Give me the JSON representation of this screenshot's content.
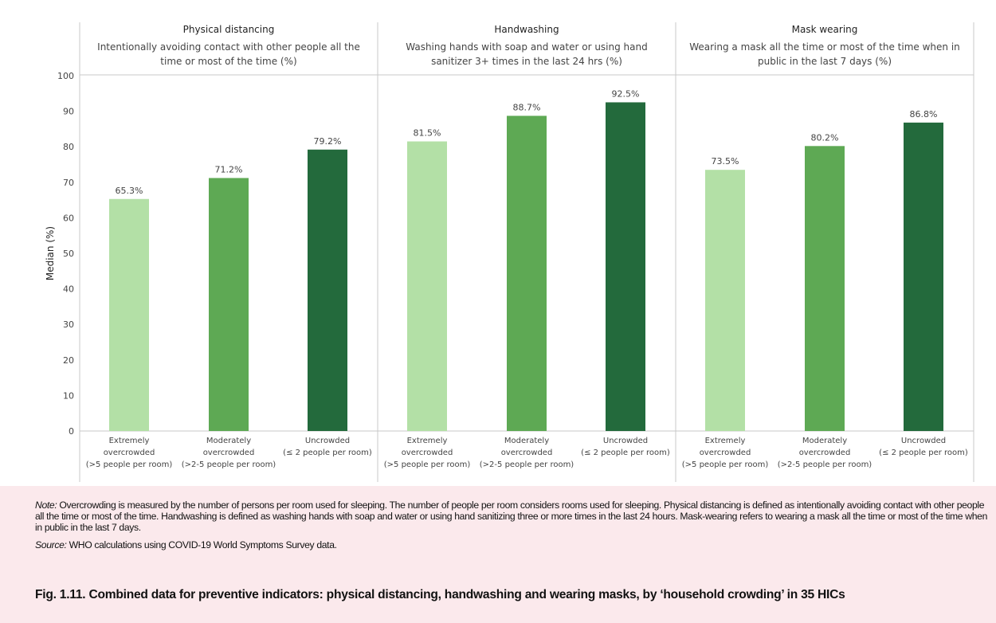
{
  "chart_data": {
    "type": "bar",
    "ylabel": "Median (%)",
    "ylim": [
      0,
      100
    ],
    "yticks": [
      0,
      10,
      20,
      30,
      40,
      50,
      60,
      70,
      80,
      90,
      100
    ],
    "categories": [
      [
        "Extremely",
        "overcrowded",
        "(>5 people per room)"
      ],
      [
        "Moderately",
        "overcrowded",
        "(>2-5 people per room)"
      ],
      [
        "Uncrowded",
        "(≤ 2 people per room)"
      ]
    ],
    "colors": [
      "#b3e0a6",
      "#5ea954",
      "#236a3c"
    ],
    "facets": [
      {
        "title": "Physical distancing",
        "subtitle": [
          "Intentionally avoiding contact with other people all the",
          "time or most of the time (%)"
        ],
        "values": [
          65.3,
          71.2,
          79.2
        ],
        "labels": [
          "65.3%",
          "71.2%",
          "79.2%"
        ]
      },
      {
        "title": "Handwashing",
        "subtitle": [
          "Washing hands with soap and water or using hand",
          "sanitizer 3+ times in the last 24 hrs (%)"
        ],
        "values": [
          81.5,
          88.7,
          92.5
        ],
        "labels": [
          "81.5%",
          "88.7%",
          "92.5%"
        ]
      },
      {
        "title": "Mask wearing",
        "subtitle": [
          "Wearing a mask all the time or most of the time when in",
          "public in the last 7 days (%)"
        ],
        "values": [
          73.5,
          80.2,
          86.8
        ],
        "labels": [
          "73.5%",
          "80.2%",
          "86.8%"
        ]
      }
    ],
    "grid": false,
    "legend": "none"
  },
  "note": {
    "label": "Note:",
    "text": " Overcrowding is measured by the number of persons per room used for sleeping. The number of people per room considers rooms used for sleeping. Physical distancing is defined as intentionally avoiding contact with other people all the time or most of the time. Handwashing is defined as washing hands with soap and water or using hand sanitizing three or more times in the last 24 hours. Mask-wearing refers to wearing a mask all the time or most of the time when in public in the last 7 days."
  },
  "source": {
    "label": "Source:",
    "text": " WHO calculations using COVID-19 World Symptoms Survey data."
  },
  "caption": "Fig. 1.11. Combined data for preventive indicators: physical distancing, handwashing and wearing masks, by ‘household crowding’ in 35 HICs"
}
